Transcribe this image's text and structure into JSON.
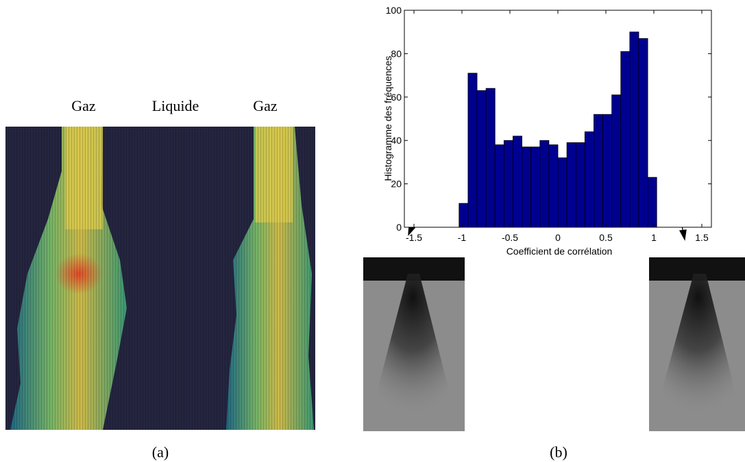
{
  "chart_data": {
    "type": "histogram",
    "xlabel": "Coefficient de corrélation",
    "ylabel": "Histogramme des fréquences",
    "bins": [
      -1.03,
      -0.9364,
      -0.8427,
      -0.7491,
      -0.6555,
      -0.5618,
      -0.4682,
      -0.3745,
      -0.2809,
      -0.1873,
      -0.0936,
      0,
      0.0936,
      0.1873,
      0.2809,
      0.3745,
      0.4682,
      0.5618,
      0.6555,
      0.7491,
      0.8427,
      0.9364,
      1.03
    ],
    "values": [
      11,
      71,
      63,
      64,
      38,
      40,
      42,
      37,
      37,
      40,
      38,
      32,
      39,
      39,
      44,
      52,
      52,
      61,
      81,
      90,
      87,
      23
    ],
    "color": "#00008f",
    "xlim": [
      -1.6,
      1.6
    ],
    "xticks": [
      -1.5,
      -1,
      -0.5,
      0,
      0.5,
      1,
      1.5
    ],
    "ylim": [
      0,
      100
    ],
    "yticks": [
      0,
      20,
      40,
      60,
      80,
      100
    ],
    "grid": false
  },
  "panel_a": {
    "labels": [
      "Gaz",
      "Liquide",
      "Gaz"
    ],
    "caption": "(a)"
  },
  "panel_b": {
    "caption": "(b)"
  }
}
